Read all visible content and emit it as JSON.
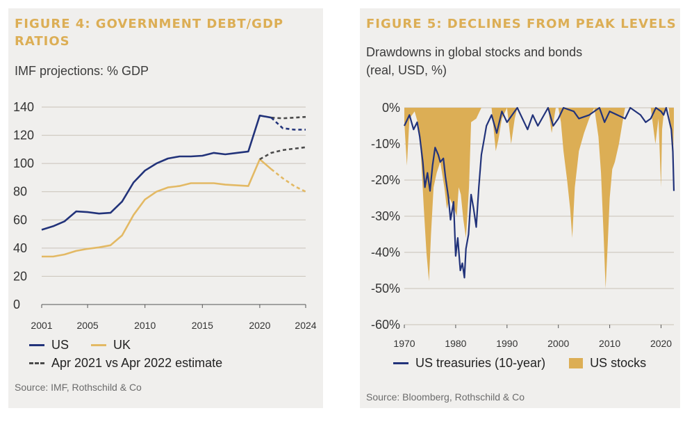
{
  "figure4": {
    "title": "FIGURE 4: GOVERNMENT DEBT/GDP RATIOS",
    "subtitle": "IMF projections: % GDP",
    "source": "Source: IMF, Rothschild & Co",
    "legend": {
      "us": "US",
      "uk": "UK",
      "estimate": "Apr 2021 vs Apr 2022 estimate"
    }
  },
  "figure5": {
    "title": "FIGURE 5: DECLINES FROM PEAK LEVELS",
    "subtitle_line1": "Drawdowns in global stocks and bonds",
    "subtitle_line2": "(real, USD, %)",
    "source": "Source: Bloomberg, Rothschild & Co",
    "legend": {
      "treasuries": "US treasuries (10-year)",
      "stocks": "US stocks"
    }
  },
  "colors": {
    "us": "#22337a",
    "uk": "#e3b964",
    "estimate": "#4a4a4a",
    "stocks": "#dcae55",
    "treasuries": "#22337a",
    "grid": "#c9c2b8"
  },
  "chart_data": [
    {
      "type": "line",
      "title": "FIGURE 4: GOVERNMENT DEBT/GDP RATIOS",
      "subtitle": "IMF projections: % GDP",
      "xlim": [
        2001,
        2024
      ],
      "ylim": [
        0,
        140
      ],
      "y_ticks": [
        0,
        20,
        40,
        60,
        80,
        100,
        120,
        140
      ],
      "x_ticks": [
        2001,
        2005,
        2010,
        2015,
        2020,
        2024
      ],
      "grid": true,
      "legend_position": "bottom",
      "series": [
        {
          "name": "US",
          "x": [
            2001,
            2002,
            2003,
            2004,
            2005,
            2006,
            2007,
            2008,
            2009,
            2010,
            2011,
            2012,
            2013,
            2014,
            2015,
            2016,
            2017,
            2018,
            2019,
            2020,
            2021
          ],
          "values": [
            53,
            55.5,
            59,
            66,
            65.5,
            64.5,
            65,
            73,
            86.5,
            95,
            100,
            103.5,
            105,
            105,
            105.5,
            107.5,
            106.5,
            107.5,
            108.5,
            134,
            132.5
          ]
        },
        {
          "name": "UK",
          "x": [
            2001,
            2002,
            2003,
            2004,
            2005,
            2006,
            2007,
            2008,
            2009,
            2010,
            2011,
            2012,
            2013,
            2014,
            2015,
            2016,
            2017,
            2018,
            2019,
            2020,
            2021
          ],
          "values": [
            34,
            34,
            35.5,
            38,
            39.5,
            40.5,
            42,
            49,
            63.5,
            74.5,
            80,
            83,
            84,
            86,
            86,
            86,
            85,
            84.5,
            84,
            103,
            96
          ]
        },
        {
          "name": "US Apr 2021 estimate",
          "style": "dashed",
          "x": [
            2021,
            2022,
            2023,
            2024
          ],
          "values": [
            132.5,
            132,
            132.5,
            133
          ]
        },
        {
          "name": "US Apr 2022 estimate",
          "style": "dashed",
          "x": [
            2021,
            2022,
            2023,
            2024
          ],
          "values": [
            132.5,
            125,
            124,
            124
          ]
        },
        {
          "name": "UK Apr 2021 estimate",
          "style": "dashed",
          "x": [
            2020,
            2021,
            2022,
            2023,
            2024
          ],
          "values": [
            103,
            107.5,
            109.5,
            110.5,
            111.5
          ]
        },
        {
          "name": "UK Apr 2022 estimate",
          "style": "dashed",
          "x": [
            2021,
            2022,
            2023,
            2024
          ],
          "values": [
            96,
            89.5,
            84,
            80
          ]
        }
      ]
    },
    {
      "type": "area",
      "title": "FIGURE 5: DECLINES FROM PEAK LEVELS",
      "subtitle": "Drawdowns in global stocks and bonds (real, USD, %)",
      "xlim": [
        1970,
        2022.5
      ],
      "ylim": [
        -60,
        0
      ],
      "y_ticks": [
        0,
        -10,
        -20,
        -30,
        -40,
        -50,
        -60
      ],
      "y_tick_labels": [
        "0%",
        "-10%",
        "-20%",
        "-30%",
        "-40%",
        "-50%",
        "-60%"
      ],
      "x_ticks": [
        1970,
        1980,
        1990,
        2000,
        2010,
        2020
      ],
      "grid": true,
      "legend_position": "bottom",
      "series": [
        {
          "name": "US stocks",
          "kind": "area",
          "x": [
            1970,
            1970.5,
            1971,
            1972,
            1972.8,
            1973.2,
            1973.8,
            1974.3,
            1974.8,
            1975.2,
            1975.7,
            1976.3,
            1977,
            1977.8,
            1978.3,
            1978.8,
            1979.5,
            1980.2,
            1980.6,
            1981,
            1981.5,
            1982,
            1982.6,
            1983,
            1984,
            1985,
            1986,
            1987,
            1987.8,
            1988.3,
            1989,
            1990,
            1990.8,
            1991.5,
            1992,
            1994,
            1996,
            1998,
            1998.7,
            1999.5,
            2000,
            2000.5,
            2001,
            2001.7,
            2002.3,
            2002.7,
            2003.2,
            2004,
            2005,
            2006,
            2007,
            2007.8,
            2008.3,
            2008.8,
            2009.2,
            2009.6,
            2010,
            2010.5,
            2011,
            2011.8,
            2012.5,
            2013,
            2015,
            2016,
            2018,
            2018.9,
            2019.5,
            2020,
            2020.2,
            2020.5,
            2021,
            2021.5,
            2022,
            2022.3,
            2022.5
          ],
          "values": [
            -4,
            -16,
            -3,
            -1,
            -5,
            -12,
            -28,
            -40,
            -48,
            -35,
            -22,
            -18,
            -15,
            -22,
            -28,
            -25,
            -27,
            -30,
            -22,
            -24,
            -31,
            -36,
            -22,
            -4,
            -3,
            0,
            0,
            0,
            -12,
            -9,
            -3,
            0,
            -10,
            -3,
            0,
            0,
            0,
            0,
            -7,
            0,
            0,
            -4,
            -12,
            -20,
            -28,
            -36,
            -22,
            -12,
            -7,
            -3,
            0,
            -8,
            -18,
            -35,
            -50,
            -38,
            -25,
            -17,
            -15,
            -10,
            -4,
            0,
            0,
            0,
            0,
            -10,
            -3,
            -22,
            -6,
            -2,
            0,
            0,
            -8,
            -16,
            -4
          ]
        },
        {
          "name": "US treasuries (10-year)",
          "kind": "line",
          "x": [
            1970,
            1971,
            1971.8,
            1972.5,
            1973,
            1973.6,
            1974,
            1974.5,
            1975,
            1975.5,
            1976,
            1976.6,
            1977,
            1977.6,
            1978,
            1978.6,
            1979,
            1979.6,
            1980,
            1980.4,
            1980.9,
            1981.3,
            1981.7,
            1982,
            1982.5,
            1983,
            1983.5,
            1984,
            1984.5,
            1985,
            1985.5,
            1986,
            1987,
            1988,
            1989,
            1990,
            1991,
            1992,
            1994,
            1995,
            1996,
            1998,
            1999,
            2000,
            2001,
            2003,
            2004,
            2006,
            2008,
            2009,
            2010,
            2013,
            2014,
            2016,
            2017,
            2018,
            2019,
            2020,
            2020.5,
            2021,
            2021.5,
            2022,
            2022.3,
            2022.5
          ],
          "values": [
            -5,
            -2,
            -6,
            -4,
            -8,
            -15,
            -22,
            -18,
            -23,
            -16,
            -11,
            -13,
            -15,
            -14,
            -19,
            -25,
            -31,
            -26,
            -41,
            -36,
            -45,
            -43,
            -47,
            -39,
            -35,
            -24,
            -28,
            -33,
            -22,
            -13,
            -9,
            -5,
            -2,
            -7,
            -1,
            -4,
            -2,
            0,
            -6,
            -2,
            -5,
            0,
            -5,
            -3,
            0,
            -1,
            -3,
            -2,
            0,
            -4,
            -1,
            -3,
            0,
            -2,
            -4,
            -3,
            0,
            -1,
            -2,
            0,
            -3,
            -6,
            -12,
            -23
          ]
        }
      ]
    }
  ]
}
